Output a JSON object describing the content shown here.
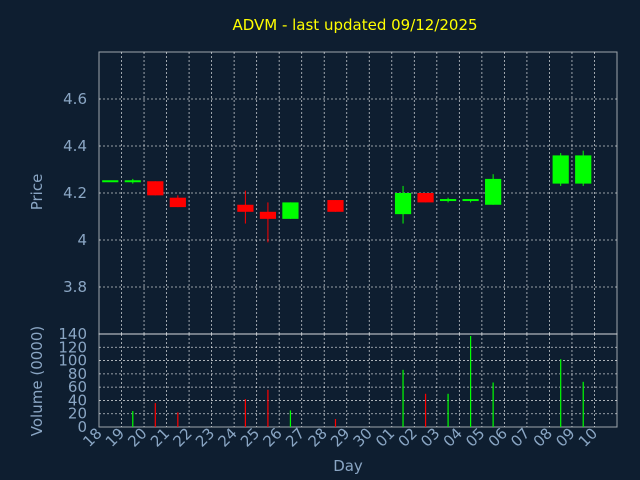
{
  "chart_data": [
    {
      "type": "candlestick",
      "title": "ADVM - last updated 09/12/2025",
      "ylabel": "Price",
      "ylim": [
        3.6,
        4.8
      ],
      "yticks": [
        3.8,
        4,
        4.2,
        4.4,
        4.6
      ],
      "ytick_labels": [
        "3.8",
        "4",
        "4.2",
        "4.4",
        "4.6"
      ],
      "grid": true,
      "up_color": "#00ff00",
      "down_color": "#ff0000",
      "candles": [
        {
          "day": "18",
          "open": 4.25,
          "high": 4.25,
          "low": 4.25,
          "close": 4.25
        },
        {
          "day": "19",
          "open": 4.25,
          "high": 4.26,
          "low": 4.24,
          "close": 4.25
        },
        {
          "day": "20",
          "open": 4.25,
          "high": 4.25,
          "low": 4.19,
          "close": 4.19
        },
        {
          "day": "21",
          "open": 4.18,
          "high": 4.19,
          "low": 4.14,
          "close": 4.14
        },
        {
          "day": "24",
          "open": 4.15,
          "high": 4.21,
          "low": 4.07,
          "close": 4.12
        },
        {
          "day": "25",
          "open": 4.12,
          "high": 4.16,
          "low": 3.99,
          "close": 4.09
        },
        {
          "day": "26",
          "open": 4.09,
          "high": 4.16,
          "low": 4.09,
          "close": 4.16
        },
        {
          "day": "28",
          "open": 4.17,
          "high": 4.17,
          "low": 4.12,
          "close": 4.12
        },
        {
          "day": "01",
          "open": 4.11,
          "high": 4.23,
          "low": 4.07,
          "close": 4.2
        },
        {
          "day": "02",
          "open": 4.2,
          "high": 4.2,
          "low": 4.16,
          "close": 4.16
        },
        {
          "day": "03",
          "open": 4.17,
          "high": 4.18,
          "low": 4.16,
          "close": 4.17
        },
        {
          "day": "04",
          "open": 4.17,
          "high": 4.17,
          "low": 4.16,
          "close": 4.17
        },
        {
          "day": "05",
          "open": 4.15,
          "high": 4.28,
          "low": 4.15,
          "close": 4.26
        },
        {
          "day": "08",
          "open": 4.24,
          "high": 4.37,
          "low": 4.23,
          "close": 4.36
        },
        {
          "day": "09",
          "open": 4.24,
          "high": 4.38,
          "low": 4.23,
          "close": 4.36
        }
      ]
    },
    {
      "type": "bar",
      "ylabel": "Volume (0000)",
      "xlabel": "Day",
      "ylim": [
        0,
        140
      ],
      "yticks": [
        0,
        20,
        40,
        60,
        80,
        100,
        120,
        140
      ],
      "ytick_labels": [
        "0",
        "20",
        "40",
        "60",
        "80",
        "100",
        "120",
        "140"
      ],
      "categories": [
        "18",
        "19",
        "20",
        "21",
        "22",
        "23",
        "24",
        "25",
        "26",
        "27",
        "28",
        "29",
        "30",
        "01",
        "02",
        "03",
        "04",
        "05",
        "06",
        "07",
        "08",
        "09",
        "10"
      ],
      "values": [
        0,
        24,
        36,
        22,
        0,
        0,
        42,
        56,
        25,
        0,
        12,
        0,
        0,
        86,
        50,
        50,
        137,
        67,
        0,
        0,
        102,
        68,
        0
      ],
      "bar_colors": [
        "#00ff00",
        "#00ff00",
        "#ff0000",
        "#ff0000",
        "#00ff00",
        "#00ff00",
        "#ff0000",
        "#ff0000",
        "#00ff00",
        "#00ff00",
        "#ff0000",
        "#00ff00",
        "#00ff00",
        "#00ff00",
        "#ff0000",
        "#00ff00",
        "#00ff00",
        "#00ff00",
        "#00ff00",
        "#00ff00",
        "#00ff00",
        "#00ff00",
        "#00ff00"
      ]
    }
  ]
}
